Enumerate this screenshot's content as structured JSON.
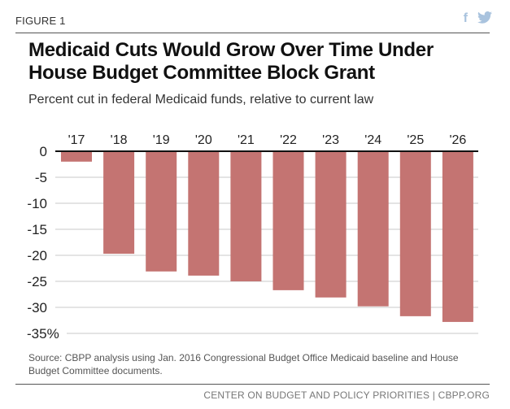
{
  "header": {
    "figure_label": "FIGURE 1",
    "social_icons": [
      "facebook-icon",
      "twitter-icon"
    ],
    "facebook_glyph": "f",
    "twitter_glyph": "🐦"
  },
  "colors": {
    "bar": "#c47472",
    "gridline": "#d3d3d3",
    "zero_line": "#111111",
    "social": "#a9c3de"
  },
  "chart_data": {
    "type": "bar",
    "title": "Medicaid Cuts Would Grow Over Time Under House Budget Committee Block Grant",
    "subtitle": "Percent cut in federal Medicaid funds, relative to current law",
    "xlabel": "",
    "ylabel": "",
    "categories": [
      "'17",
      "'18",
      "'19",
      "'20",
      "'21",
      "'22",
      "'23",
      "'24",
      "'25",
      "'26"
    ],
    "values": [
      -2.0,
      -19.7,
      -23.1,
      -23.9,
      -25.0,
      -26.7,
      -28.1,
      -29.8,
      -31.7,
      -32.8
    ],
    "ylim": [
      -35,
      0
    ],
    "yticks": [
      0,
      -5,
      -10,
      -15,
      -20,
      -25,
      -30,
      -35
    ],
    "ytick_labels": [
      "0",
      "-5",
      "-10",
      "-15",
      "-20",
      "-25",
      "-30",
      "-35%"
    ],
    "x_axis_position": "top",
    "grid": true,
    "legend": "none"
  },
  "footer": {
    "source": "Source: CBPP analysis using Jan. 2016 Congressional Budget Office Medicaid baseline and House Budget Committee documents.",
    "credit": "CENTER ON BUDGET AND POLICY PRIORITIES | CBPP.ORG"
  }
}
